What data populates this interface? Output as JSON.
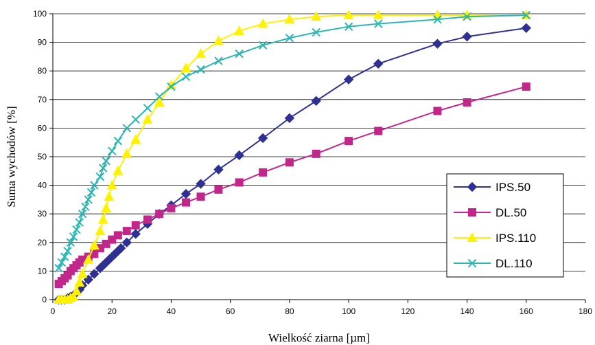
{
  "chart_data": {
    "type": "line",
    "title": "",
    "xlabel": "Wielkość ziarna [µm]",
    "ylabel": "Suma wychodów [%]",
    "xlim": [
      0,
      180
    ],
    "ylim": [
      0,
      100
    ],
    "x_ticks": [
      "0",
      "20",
      "40",
      "60",
      "80",
      "100",
      "120",
      "140",
      "160",
      "180"
    ],
    "y_ticks": [
      "0",
      "10",
      "20",
      "30",
      "40",
      "50",
      "60",
      "70",
      "80",
      "90",
      "100"
    ],
    "grid": "horizontal",
    "legend_position": "right",
    "series": [
      {
        "name": "IPS.50",
        "color": "#2E3192",
        "marker": "diamond",
        "points": [
          [
            2,
            0
          ],
          [
            3,
            0
          ],
          [
            4,
            0
          ],
          [
            5,
            0.5
          ],
          [
            6,
            1
          ],
          [
            7,
            1.5
          ],
          [
            8,
            2.5
          ],
          [
            9,
            3.5
          ],
          [
            10,
            5
          ],
          [
            12,
            7
          ],
          [
            14,
            9
          ],
          [
            16,
            11
          ],
          [
            17,
            12
          ],
          [
            18,
            13
          ],
          [
            19,
            14
          ],
          [
            20,
            15
          ],
          [
            21,
            16
          ],
          [
            22,
            17
          ],
          [
            23,
            18
          ],
          [
            25,
            20
          ],
          [
            28,
            23
          ],
          [
            32,
            26.5
          ],
          [
            36,
            30
          ],
          [
            40,
            33
          ],
          [
            45,
            37
          ],
          [
            50,
            40.5
          ],
          [
            56,
            45.5
          ],
          [
            63,
            50.5
          ],
          [
            71,
            56.5
          ],
          [
            80,
            63.5
          ],
          [
            89,
            69.5
          ],
          [
            100,
            77
          ],
          [
            110,
            82.5
          ],
          [
            130,
            89.5
          ],
          [
            140,
            92
          ],
          [
            160,
            95
          ]
        ]
      },
      {
        "name": "DL.50",
        "color": "#C1268A",
        "marker": "square",
        "points": [
          [
            2,
            5.5
          ],
          [
            3,
            6.5
          ],
          [
            4,
            7.5
          ],
          [
            5,
            8.5
          ],
          [
            6,
            10
          ],
          [
            7,
            11
          ],
          [
            8,
            12
          ],
          [
            9,
            13
          ],
          [
            10,
            14
          ],
          [
            12,
            15
          ],
          [
            14,
            16
          ],
          [
            16,
            18
          ],
          [
            18,
            19.5
          ],
          [
            20,
            21
          ],
          [
            22,
            22.5
          ],
          [
            25,
            24
          ],
          [
            28,
            26
          ],
          [
            32,
            28
          ],
          [
            36,
            30
          ],
          [
            40,
            32
          ],
          [
            45,
            34
          ],
          [
            50,
            36
          ],
          [
            56,
            38.5
          ],
          [
            63,
            41
          ],
          [
            71,
            44.5
          ],
          [
            80,
            48
          ],
          [
            89,
            51
          ],
          [
            100,
            55.5
          ],
          [
            110,
            59
          ],
          [
            130,
            66
          ],
          [
            140,
            69
          ],
          [
            160,
            74.5
          ]
        ]
      },
      {
        "name": "IPS.110",
        "color": "#FFF200",
        "marker": "triangle",
        "points": [
          [
            2,
            0
          ],
          [
            3,
            0
          ],
          [
            4,
            0
          ],
          [
            5,
            0
          ],
          [
            6,
            0.5
          ],
          [
            7,
            1
          ],
          [
            8,
            3
          ],
          [
            9,
            6
          ],
          [
            10,
            9
          ],
          [
            12,
            14
          ],
          [
            14,
            19
          ],
          [
            16,
            24
          ],
          [
            17,
            28
          ],
          [
            18,
            32
          ],
          [
            19,
            36
          ],
          [
            20,
            40
          ],
          [
            22,
            45
          ],
          [
            25,
            51
          ],
          [
            28,
            56
          ],
          [
            32,
            63
          ],
          [
            36,
            69
          ],
          [
            40,
            75
          ],
          [
            45,
            81
          ],
          [
            50,
            86
          ],
          [
            56,
            90.5
          ],
          [
            63,
            94
          ],
          [
            71,
            96.5
          ],
          [
            80,
            98
          ],
          [
            89,
            99
          ],
          [
            100,
            99.5
          ],
          [
            110,
            99.5
          ],
          [
            130,
            99.5
          ],
          [
            140,
            99.5
          ],
          [
            160,
            99.5
          ]
        ]
      },
      {
        "name": "DL.110",
        "color": "#2BB5B3",
        "marker": "x",
        "points": [
          [
            2,
            11
          ],
          [
            3,
            13
          ],
          [
            4,
            15
          ],
          [
            5,
            17
          ],
          [
            6,
            20
          ],
          [
            7,
            22
          ],
          [
            8,
            24.5
          ],
          [
            9,
            27
          ],
          [
            10,
            30
          ],
          [
            11,
            32.5
          ],
          [
            12,
            35
          ],
          [
            13,
            37.5
          ],
          [
            14,
            40
          ],
          [
            16,
            43
          ],
          [
            17,
            46
          ],
          [
            18,
            48.5
          ],
          [
            20,
            52
          ],
          [
            22,
            55.5
          ],
          [
            25,
            60
          ],
          [
            28,
            63
          ],
          [
            32,
            67
          ],
          [
            36,
            71
          ],
          [
            40,
            74.5
          ],
          [
            45,
            78
          ],
          [
            50,
            80.5
          ],
          [
            56,
            83.5
          ],
          [
            63,
            86
          ],
          [
            71,
            89
          ],
          [
            80,
            91.5
          ],
          [
            89,
            93.5
          ],
          [
            100,
            95.5
          ],
          [
            110,
            96.5
          ],
          [
            130,
            98
          ],
          [
            140,
            99
          ],
          [
            160,
            99.5
          ]
        ]
      }
    ]
  }
}
